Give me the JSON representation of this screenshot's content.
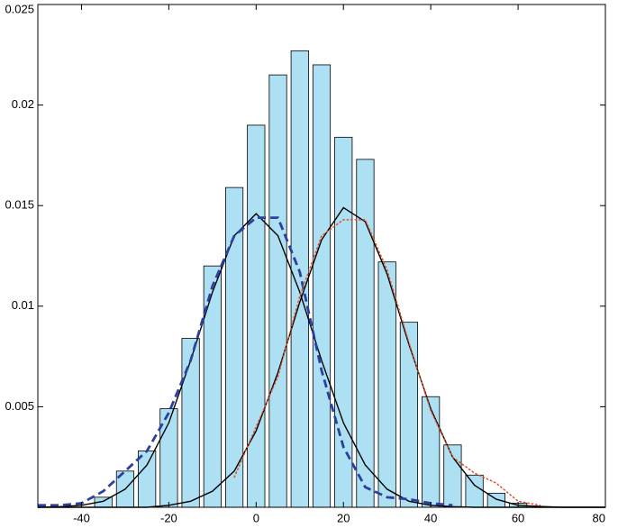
{
  "chart_data": {
    "type": "bar",
    "x": [
      -35,
      -30,
      -25,
      -20,
      -15,
      -10,
      -5,
      0,
      5,
      10,
      15,
      20,
      25,
      30,
      35,
      40,
      45,
      50,
      55,
      60
    ],
    "values": [
      0.0005,
      0.0018,
      0.0028,
      0.0049,
      0.0084,
      0.012,
      0.0159,
      0.019,
      0.0215,
      0.0227,
      0.022,
      0.0184,
      0.0173,
      0.0122,
      0.0092,
      0.0055,
      0.0031,
      0.0016,
      0.0007,
      0.0002
    ],
    "color": "#aee0f3",
    "xlim": [
      -50,
      80
    ],
    "xticks": [
      -40,
      -20,
      0,
      20,
      40,
      60,
      80
    ],
    "ylim": [
      0,
      0.025
    ],
    "yticks": [
      0.005,
      0.01,
      0.015,
      0.02,
      0.025
    ],
    "lines": {
      "x": [
        -50,
        -45,
        -40,
        -35,
        -30,
        -25,
        -20,
        -15,
        -10,
        -5,
        0,
        5,
        10,
        15,
        20,
        25,
        30,
        35,
        40,
        45,
        50,
        55,
        60,
        65,
        70,
        75,
        80
      ],
      "series": [
        {
          "color": "#000000",
          "style": "solid",
          "values": [
            0,
            3e-05,
            0.0001,
            0.0003,
            0.0009,
            0.0021,
            0.0042,
            0.0073,
            0.0107,
            0.0135,
            0.0146,
            0.0135,
            0.0107,
            0.0073,
            0.0042,
            0.0021,
            0.0009,
            0.0003,
            0.0001,
            3e-05,
            0,
            0,
            0,
            0,
            0,
            0,
            0
          ]
        },
        {
          "color": "#000000",
          "style": "solid",
          "values": [
            0,
            0,
            0,
            0,
            0,
            0,
            0.0001,
            0.0003,
            0.0008,
            0.0018,
            0.0038,
            0.0067,
            0.0102,
            0.0133,
            0.0149,
            0.0142,
            0.0116,
            0.0081,
            0.0049,
            0.0025,
            0.0011,
            0.0004,
            0.0001,
            4e-05,
            0,
            0,
            0
          ]
        },
        {
          "color": "#2b3fa0",
          "style": "dashed",
          "values": [
            0.0001,
            0.0001,
            0.0002,
            0.0008,
            0.0018,
            0.0028,
            0.0047,
            0.0073,
            0.011,
            0.0135,
            0.0144,
            0.0144,
            0.0117,
            0.0068,
            0.003,
            0.001,
            0.0005,
            0.0004,
            0.0002,
            0.0001,
            null,
            null,
            null,
            null,
            null,
            null,
            null
          ]
        },
        {
          "color": "#e0502a",
          "style": "dotted",
          "values": [
            null,
            null,
            null,
            null,
            null,
            null,
            null,
            null,
            null,
            0.0015,
            0.004,
            0.0065,
            0.0105,
            0.0135,
            0.0143,
            0.0143,
            0.0118,
            0.0082,
            0.0048,
            0.0025,
            0.0017,
            0.0012,
            0.0003,
            0.0001,
            null,
            null,
            null
          ]
        }
      ]
    }
  }
}
